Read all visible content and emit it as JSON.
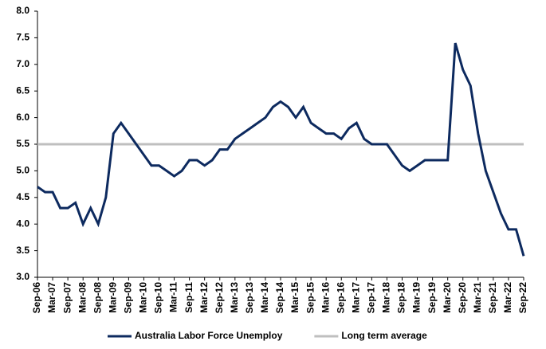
{
  "chart_data": {
    "type": "line",
    "categories": [
      "Sep-06",
      null,
      "Mar-07",
      null,
      "Sep-07",
      null,
      "Mar-08",
      null,
      "Sep-08",
      null,
      "Mar-09",
      null,
      "Sep-09",
      null,
      "Mar-10",
      null,
      "Sep-10",
      null,
      "Mar-11",
      null,
      "Sep-11",
      null,
      "Mar-12",
      null,
      "Sep-12",
      null,
      "Mar-13",
      null,
      "Sep-13",
      null,
      "Mar-14",
      null,
      "Sep-14",
      null,
      "Mar-15",
      null,
      "Sep-15",
      null,
      "Mar-16",
      null,
      "Sep-16",
      null,
      "Mar-17",
      null,
      "Sep-17",
      null,
      "Mar-18",
      null,
      "Sep-18",
      null,
      "Mar-19",
      null,
      "Sep-19",
      null,
      "Mar-20",
      null,
      "Sep-20",
      null,
      "Mar-21",
      null,
      "Sep-21",
      null,
      "Mar-22",
      null,
      "Sep-22"
    ],
    "series": [
      {
        "name": "Australia Labor Force Unemploy",
        "color": "#0d2a5f",
        "values": [
          4.7,
          4.6,
          4.6,
          4.3,
          4.3,
          4.4,
          4.0,
          4.3,
          4.0,
          4.5,
          5.7,
          5.9,
          5.7,
          5.5,
          5.3,
          5.1,
          5.1,
          5.0,
          4.9,
          5.0,
          5.2,
          5.2,
          5.1,
          5.2,
          5.4,
          5.4,
          5.6,
          5.7,
          5.8,
          5.9,
          6.0,
          6.2,
          6.3,
          6.2,
          6.0,
          6.2,
          5.9,
          5.8,
          5.7,
          5.7,
          5.6,
          5.8,
          5.9,
          5.6,
          5.5,
          5.5,
          5.5,
          5.3,
          5.1,
          5.0,
          5.1,
          5.2,
          5.2,
          5.2,
          5.2,
          7.4,
          6.9,
          6.6,
          5.7,
          5.0,
          4.6,
          4.2,
          3.9,
          3.9,
          3.4
        ]
      },
      {
        "name": "Long term average",
        "color": "#bfbfbf",
        "values": [
          5.5,
          5.5,
          5.5,
          5.5,
          5.5,
          5.5,
          5.5,
          5.5,
          5.5,
          5.5,
          5.5,
          5.5,
          5.5,
          5.5,
          5.5,
          5.5,
          5.5,
          5.5,
          5.5,
          5.5,
          5.5,
          5.5,
          5.5,
          5.5,
          5.5,
          5.5,
          5.5,
          5.5,
          5.5,
          5.5,
          5.5,
          5.5,
          5.5,
          5.5,
          5.5,
          5.5,
          5.5,
          5.5,
          5.5,
          5.5,
          5.5,
          5.5,
          5.5,
          5.5,
          5.5,
          5.5,
          5.5,
          5.5,
          5.5,
          5.5,
          5.5,
          5.5,
          5.5,
          5.5,
          5.5,
          5.5,
          5.5,
          5.5,
          5.5,
          5.5,
          5.5,
          5.5,
          5.5,
          5.5,
          5.5
        ]
      }
    ],
    "ylim": [
      3,
      8
    ],
    "yticks": [
      {
        "value": 3,
        "label": "3.0"
      },
      3.5,
      {
        "value": 4,
        "label": "4.0"
      },
      4.5,
      {
        "value": 5,
        "label": "5.0"
      },
      5.5,
      {
        "value": 6,
        "label": "6.0"
      },
      6.5,
      {
        "value": 7,
        "label": "7.0"
      },
      7.5,
      {
        "value": 8,
        "label": "8.0"
      }
    ],
    "grid": false,
    "legend": "bottom"
  }
}
